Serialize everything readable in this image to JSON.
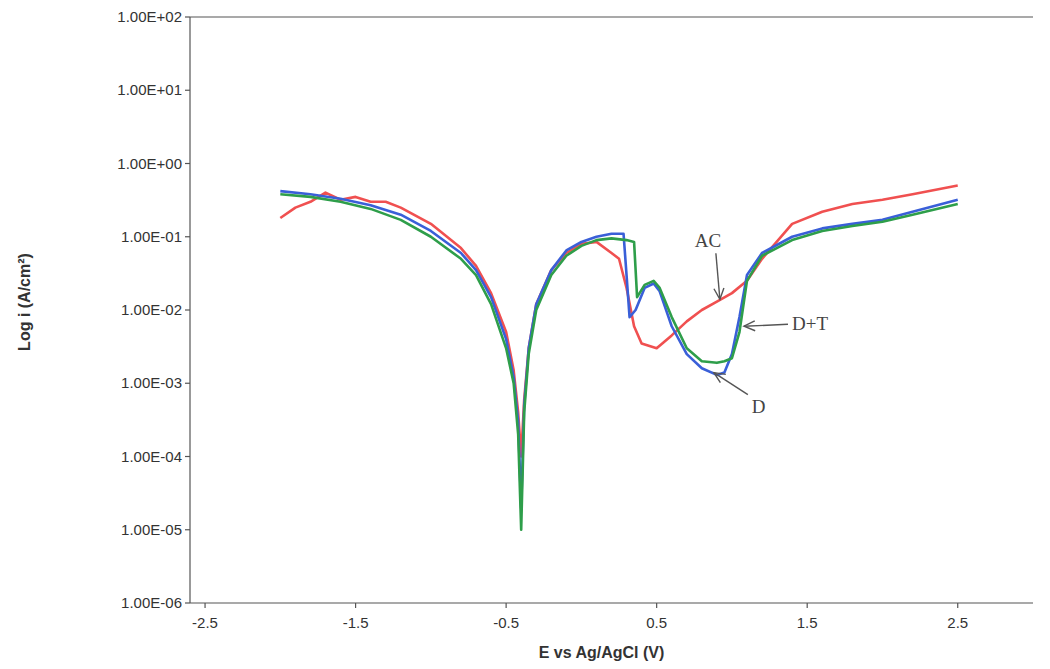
{
  "chart_data": {
    "type": "line",
    "x_label": "E vs Ag/AgCl (V)",
    "y_label": "Log i (A/cm²)",
    "log": "y",
    "grid": false,
    "xlim": [
      -2.6,
      3.0
    ],
    "ylim": [
      1e-06,
      100
    ],
    "xticks": [
      -2.5,
      -1.5,
      -0.5,
      0.5,
      1.5,
      2.5
    ],
    "yticks": [
      {
        "value": 100,
        "label": "1.00E+02"
      },
      {
        "value": 10,
        "label": "1.00E+01"
      },
      {
        "value": 1,
        "label": "1.00E+00"
      },
      {
        "value": 0.1,
        "label": "1.00E-01"
      },
      {
        "value": 0.01,
        "label": "1.00E-02"
      },
      {
        "value": 0.001,
        "label": "1.00E-03"
      },
      {
        "value": 0.0001,
        "label": "1.00E-04"
      },
      {
        "value": 1e-05,
        "label": "1.00E-05"
      },
      {
        "value": 1e-06,
        "label": "1.00E-06"
      }
    ],
    "series": [
      {
        "name": "AC",
        "color": "#f05050",
        "x": [
          -2.0,
          -1.9,
          -1.8,
          -1.7,
          -1.6,
          -1.5,
          -1.4,
          -1.3,
          -1.2,
          -1.0,
          -0.8,
          -0.7,
          -0.6,
          -0.5,
          -0.45,
          -0.42,
          -0.4,
          -0.38,
          -0.35,
          -0.3,
          -0.2,
          -0.1,
          0.0,
          0.1,
          0.2,
          0.25,
          0.3,
          0.35,
          0.4,
          0.5,
          0.6,
          0.7,
          0.8,
          0.9,
          1.0,
          1.1,
          1.2,
          1.4,
          1.6,
          1.8,
          2.0,
          2.2,
          2.5
        ],
        "values": [
          0.18,
          0.25,
          0.3,
          0.4,
          0.32,
          0.35,
          0.3,
          0.3,
          0.25,
          0.15,
          0.07,
          0.04,
          0.017,
          0.005,
          0.0015,
          0.0004,
          0.0001,
          0.0006,
          0.003,
          0.012,
          0.035,
          0.06,
          0.08,
          0.085,
          0.06,
          0.05,
          0.02,
          0.006,
          0.0035,
          0.003,
          0.0045,
          0.007,
          0.01,
          0.013,
          0.017,
          0.025,
          0.05,
          0.15,
          0.22,
          0.28,
          0.32,
          0.38,
          0.5
        ]
      },
      {
        "name": "D",
        "color": "#3a5fd8",
        "x": [
          -2.0,
          -1.8,
          -1.6,
          -1.4,
          -1.2,
          -1.0,
          -0.8,
          -0.7,
          -0.6,
          -0.5,
          -0.45,
          -0.42,
          -0.4,
          -0.38,
          -0.35,
          -0.3,
          -0.2,
          -0.1,
          0.0,
          0.1,
          0.2,
          0.28,
          0.3,
          0.32,
          0.36,
          0.42,
          0.48,
          0.52,
          0.6,
          0.7,
          0.8,
          0.9,
          0.95,
          1.0,
          1.05,
          1.1,
          1.2,
          1.4,
          1.6,
          1.8,
          2.0,
          2.2,
          2.5
        ],
        "values": [
          0.42,
          0.38,
          0.33,
          0.27,
          0.2,
          0.12,
          0.06,
          0.035,
          0.015,
          0.004,
          0.0012,
          0.0003,
          2e-05,
          0.0005,
          0.003,
          0.012,
          0.035,
          0.065,
          0.085,
          0.1,
          0.11,
          0.11,
          0.03,
          0.008,
          0.01,
          0.02,
          0.023,
          0.018,
          0.006,
          0.0025,
          0.0016,
          0.0013,
          0.0014,
          0.0025,
          0.008,
          0.03,
          0.06,
          0.1,
          0.13,
          0.15,
          0.17,
          0.22,
          0.32
        ]
      },
      {
        "name": "D+T",
        "color": "#2e9e4a",
        "x": [
          -2.0,
          -1.8,
          -1.6,
          -1.4,
          -1.2,
          -1.0,
          -0.8,
          -0.7,
          -0.6,
          -0.5,
          -0.45,
          -0.42,
          -0.4,
          -0.38,
          -0.35,
          -0.3,
          -0.2,
          -0.1,
          0.0,
          0.1,
          0.2,
          0.3,
          0.35,
          0.37,
          0.42,
          0.48,
          0.52,
          0.6,
          0.7,
          0.8,
          0.9,
          0.95,
          1.0,
          1.05,
          1.1,
          1.2,
          1.4,
          1.6,
          1.8,
          2.0,
          2.2,
          2.5
        ],
        "values": [
          0.38,
          0.35,
          0.3,
          0.24,
          0.17,
          0.1,
          0.05,
          0.03,
          0.012,
          0.003,
          0.001,
          0.0002,
          1e-05,
          0.0004,
          0.0025,
          0.01,
          0.03,
          0.055,
          0.075,
          0.09,
          0.095,
          0.09,
          0.085,
          0.015,
          0.022,
          0.025,
          0.02,
          0.008,
          0.003,
          0.002,
          0.0019,
          0.002,
          0.0022,
          0.005,
          0.025,
          0.055,
          0.09,
          0.12,
          0.14,
          0.16,
          0.2,
          0.28
        ]
      }
    ],
    "annotations": [
      {
        "text": "AC",
        "x": 0.92,
        "y": 0.014
      },
      {
        "text": "D+T",
        "x": 1.08,
        "y": 0.006
      },
      {
        "text": "D",
        "x": 0.88,
        "y": 0.0014
      }
    ]
  }
}
